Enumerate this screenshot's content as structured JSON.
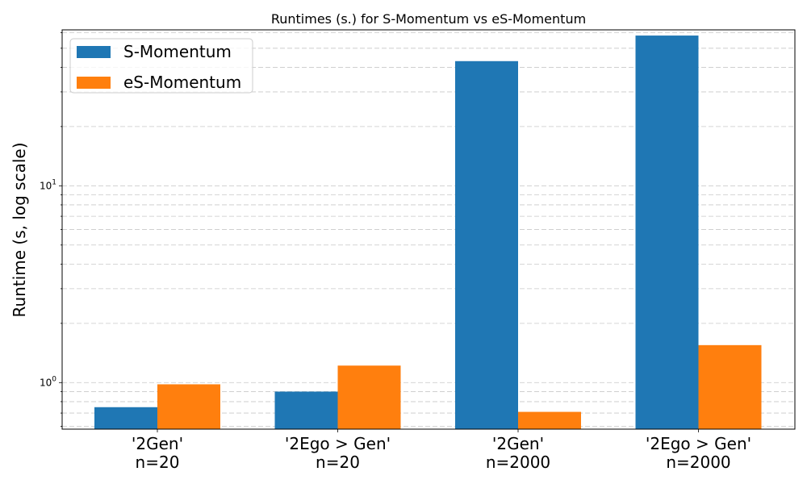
{
  "chart_data": {
    "type": "bar",
    "title": "Runtimes (s.) for S-Momentum vs eS-Momentum",
    "xlabel": "",
    "ylabel": "Runtime (s, log scale)",
    "yscale": "log",
    "ylim": [
      0.58,
      62
    ],
    "grid": true,
    "legend_position": "top-left",
    "categories": [
      [
        "'2Gen'",
        "n=20"
      ],
      [
        "'2Ego > Gen'",
        "n=20"
      ],
      [
        "'2Gen'",
        "n=2000"
      ],
      [
        "'2Ego > Gen'",
        "n=2000"
      ]
    ],
    "series": [
      {
        "name": "S-Momentum",
        "color": "#1f77b4",
        "values": [
          0.75,
          0.9,
          43.0,
          58.0
        ]
      },
      {
        "name": "eS-Momentum",
        "color": "#ff7f0e",
        "values": [
          0.98,
          1.22,
          0.71,
          1.55
        ]
      }
    ],
    "y_major_ticks": [
      {
        "value": 1,
        "base": "10",
        "exp": "0"
      },
      {
        "value": 10,
        "base": "10",
        "exp": "1"
      }
    ]
  }
}
